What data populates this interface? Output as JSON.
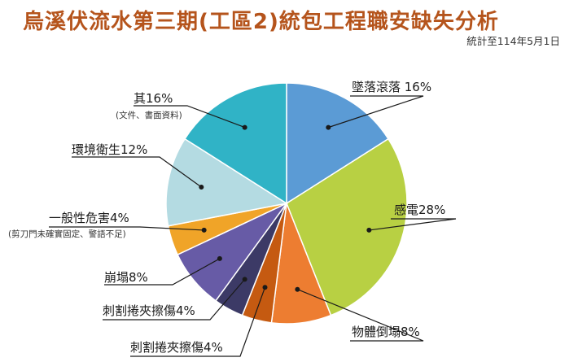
{
  "title": "烏溪伏流水第三期(工區2)統包工程職安缺失分析",
  "subtitle": "統計至114年5月1日",
  "chart_data": {
    "type": "pie",
    "slices": [
      {
        "label": "墜落滾落 16%",
        "value": 16,
        "color": "#5b9bd5"
      },
      {
        "label": "感電28%",
        "value": 28,
        "color": "#b8d043"
      },
      {
        "label": "物體倒塌8%",
        "value": 8,
        "color": "#ed7d31"
      },
      {
        "label": "刺割捲夾擦傷4%",
        "value": 4,
        "color": "#c55a11"
      },
      {
        "label": "刺割捲夾擦傷4%",
        "value": 4,
        "color": "#3c3a66"
      },
      {
        "label": "崩塌8%",
        "value": 8,
        "color": "#675ba6"
      },
      {
        "label": "一般性危害4%",
        "value": 4,
        "color": "#f0a428",
        "note": "(剪刀門未確實固定、警語不足)"
      },
      {
        "label": "環境衛生12%",
        "value": 12,
        "color": "#b4dbe2"
      },
      {
        "label": "其16%",
        "value": 16,
        "color": "#30b3c6",
        "note": "(文件、書面資料)"
      }
    ]
  }
}
